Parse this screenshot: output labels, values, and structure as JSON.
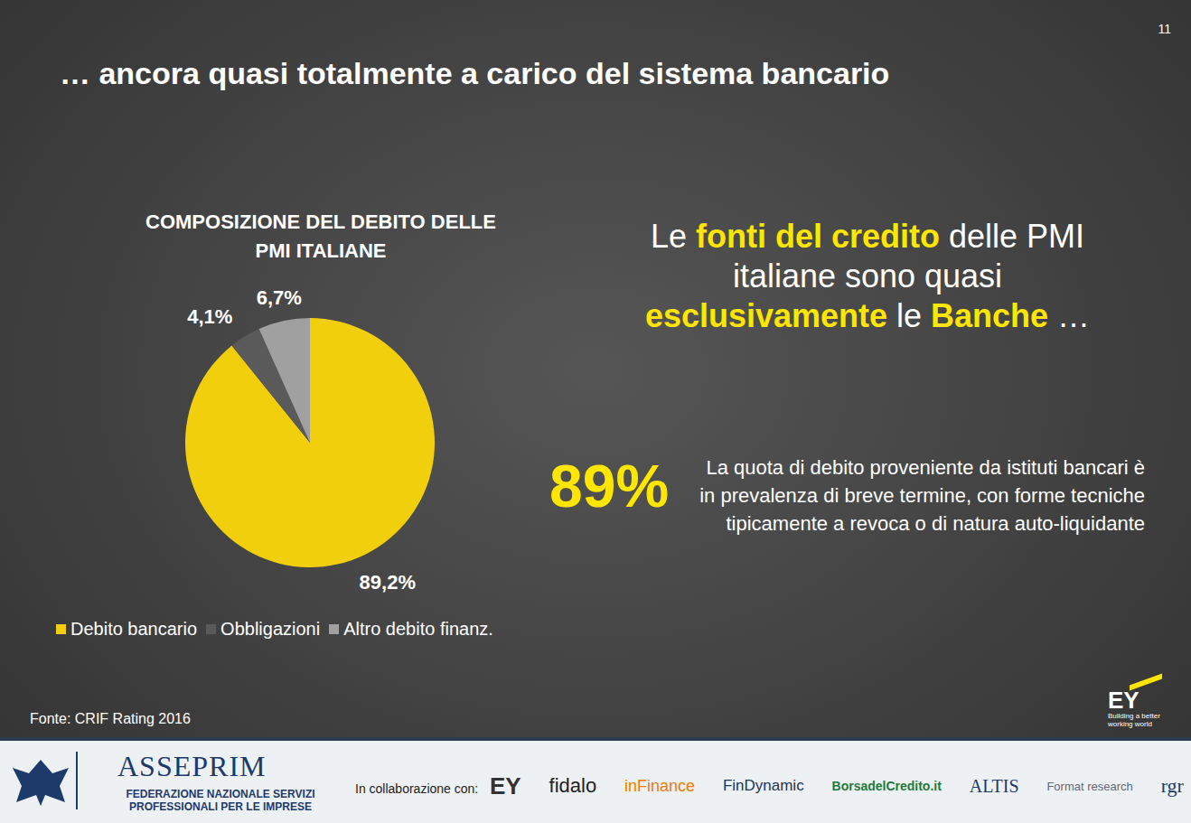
{
  "slide": {
    "page": "11",
    "title": "… ancora quasi totalmente a carico del sistema bancario",
    "headline": [
      [
        {
          "text": "Le ",
          "highlight": false
        },
        {
          "text": "fonti del credito",
          "highlight": true
        },
        {
          "text": " delle PMI",
          "highlight": false
        }
      ],
      [
        {
          "text": "italiane sono quasi",
          "highlight": false
        }
      ],
      [
        {
          "text": "esclusivamente",
          "highlight": true
        },
        {
          "text": " le ",
          "highlight": false
        },
        {
          "text": "Banche",
          "highlight": true
        },
        {
          "text": " …",
          "highlight": false
        }
      ]
    ],
    "big_number": "89%",
    "note": "La quota di debito proveniente da istituti bancari è in prevalenza di breve termine, con forme tecniche tipicamente a revoca o di natura auto-liquidante",
    "source": "Fonte: CRIF Rating 2016",
    "brand": {
      "logo": "EY",
      "tagline": "Building a better working world"
    }
  },
  "footer": {
    "org": "ASSEPRIM",
    "org_subtitle": [
      "FEDERAZIONE NAZIONALE SERVIZI",
      "PROFESSIONALI PER LE IMPRESE"
    ],
    "partners_label": "In collaborazione con:",
    "partners": [
      "EY",
      "fidalo",
      "inFinance",
      "FinDynamic",
      "BorsadelCredito.it",
      "ALTIS",
      "Format research",
      "rgr"
    ]
  },
  "chart_data": {
    "type": "pie",
    "title": "COMPOSIZIONE DEL DEBITO DELLE PMI ITALIANE",
    "categories": [
      "Debito bancario",
      "Obbligazioni",
      "Altro debito finanz."
    ],
    "values": [
      89.2,
      4.1,
      6.7
    ],
    "value_labels": [
      "89,2%",
      "4,1%",
      "6,7%"
    ],
    "colors": [
      "#f2cf0c",
      "#5a5a5a",
      "#a0a0a0"
    ],
    "data_labels": true,
    "legend": "bottom"
  }
}
